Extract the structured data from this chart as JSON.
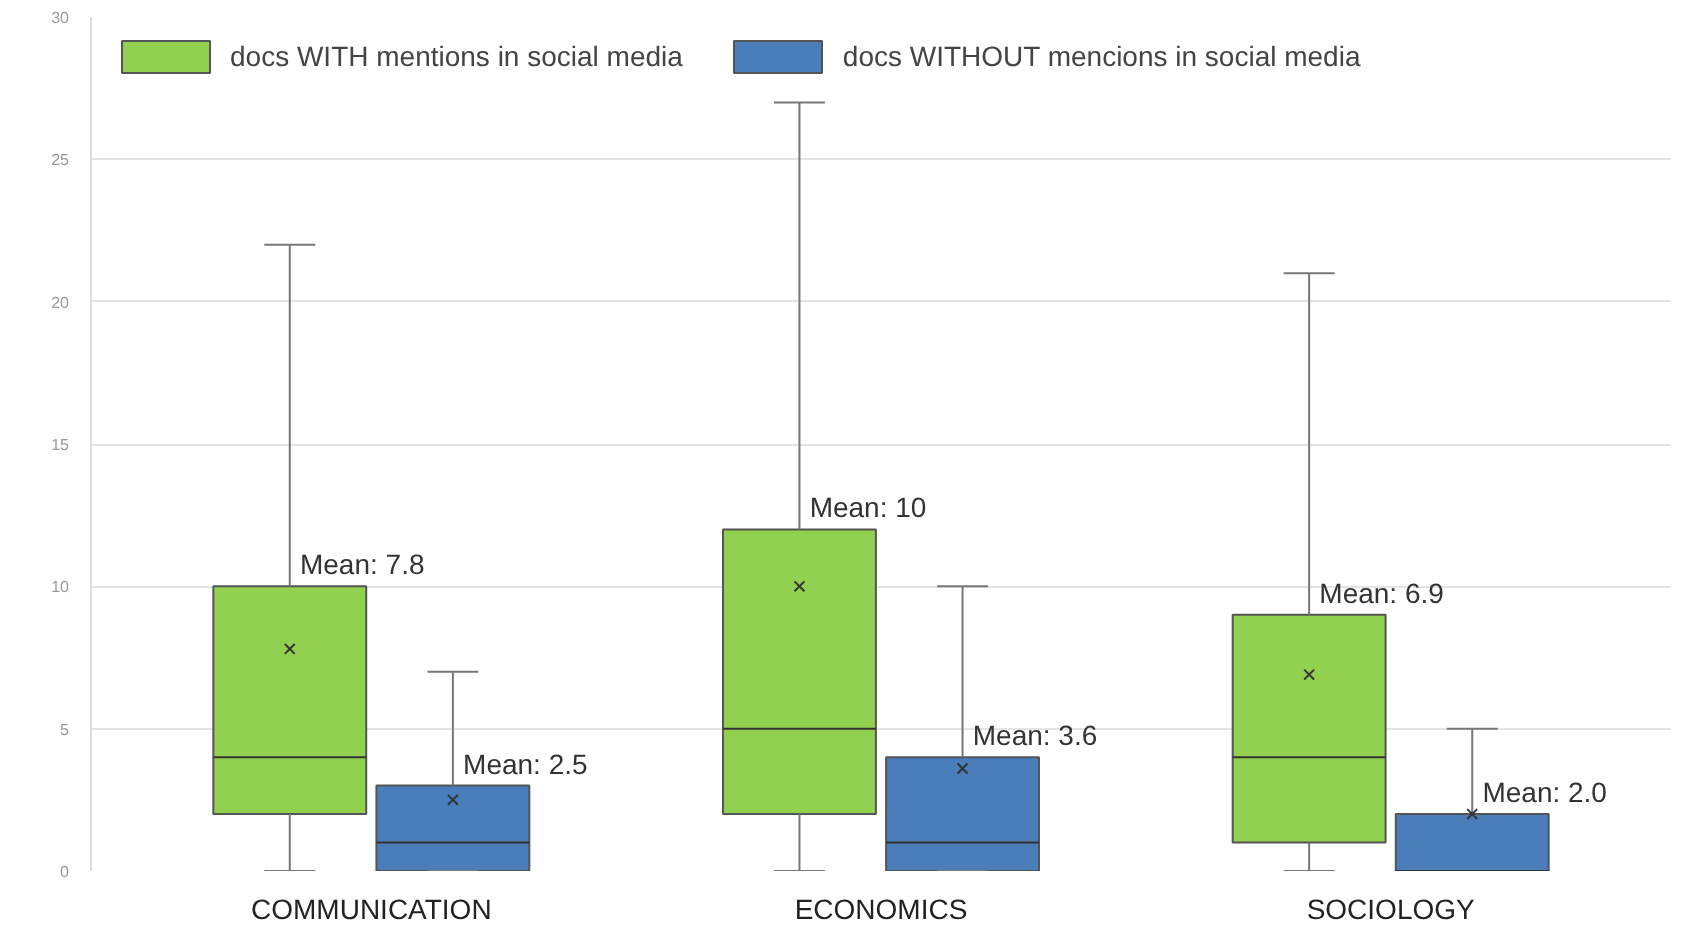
{
  "chart_data": {
    "type": "box",
    "categories": [
      "COMMUNICATION",
      "ECONOMICS",
      "SOCIOLOGY"
    ],
    "series": [
      {
        "name": "docs WITH mentions in social media",
        "color": "#92d050",
        "boxes": [
          {
            "low": 0,
            "q1": 2,
            "median": 4,
            "q3": 10,
            "high": 22,
            "mean": 7.8
          },
          {
            "low": 0,
            "q1": 2,
            "median": 5,
            "q3": 12,
            "high": 27,
            "mean": 10
          },
          {
            "low": 0,
            "q1": 1,
            "median": 4,
            "q3": 9,
            "high": 21,
            "mean": 6.9
          }
        ]
      },
      {
        "name": "docs WITHOUT mencions in social media",
        "color": "#4a7ebb",
        "boxes": [
          {
            "low": 0,
            "q1": 0,
            "median": 1,
            "q3": 3,
            "high": 7,
            "mean": 2.5
          },
          {
            "low": 0,
            "q1": 0,
            "median": 1,
            "q3": 4,
            "high": 10,
            "mean": 3.6
          },
          {
            "low": 0,
            "q1": 0,
            "median": 0,
            "q3": 2,
            "high": 5,
            "mean": 2.0
          }
        ]
      }
    ],
    "ylim": [
      0,
      30
    ],
    "yticks": [
      0,
      5,
      10,
      15,
      20,
      25,
      30
    ],
    "grid": "y",
    "legend": "top left",
    "annotations": [
      "Mean: 7.8",
      "Mean: 2.5",
      "Mean: 10",
      "Mean: 3.6",
      "Mean: 6.9",
      "Mean: 2.0"
    ]
  }
}
